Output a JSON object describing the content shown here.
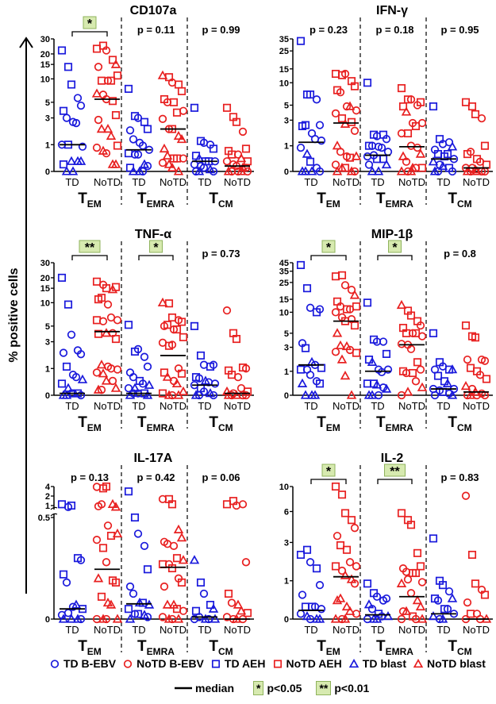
{
  "ylabel": "% positive cells",
  "colors": {
    "td": "#1a1adc",
    "notd": "#e82020",
    "sig_fill": "#d7eab0",
    "sig_border": "#8fb35c"
  },
  "legend": {
    "items": [
      {
        "label": "TD B-EBV",
        "shape": "o",
        "group": "td"
      },
      {
        "label": "NoTD B-EBV",
        "shape": "o",
        "group": "notd"
      },
      {
        "label": "TD AEH",
        "shape": "s",
        "group": "td"
      },
      {
        "label": "NoTD AEH",
        "shape": "s",
        "group": "notd"
      },
      {
        "label": "TD blast",
        "shape": "t",
        "group": "td"
      },
      {
        "label": "NoTD blast",
        "shape": "t",
        "group": "notd"
      }
    ],
    "median": "median",
    "sig1_mark": "*",
    "sig1_label": "p<0.05",
    "sig2_mark": "**",
    "sig2_label": "p<0.01"
  },
  "chart_data": [
    {
      "type": "scatter",
      "title": "CD107a",
      "scale": "log1p",
      "yticks": [
        0,
        1,
        3,
        5,
        10,
        15,
        20,
        30
      ],
      "ymax": 30,
      "categories": [
        "TD",
        "NoTD"
      ],
      "subsets": [
        [
          "T",
          "EM"
        ],
        [
          "T",
          "EMRA"
        ],
        [
          "T",
          "CM"
        ]
      ],
      "stats": [
        "*",
        "p = 0.11",
        "p = 0.99"
      ],
      "medians": [
        1,
        5.5,
        0.75,
        2,
        0.3,
        0.15
      ],
      "groups": [
        "s22 s14 s8.5 o5.7 o4.5 s3.8 o3 o2.6 o2.5 o0.9 o1 s1 t0.3 t0.3 t0.3 s0.2 t0 t0",
        "s23 s25 o22 s17 t15 o14 s9.5 o9.5 s9.5 s11 t6.5 o6.3 o5.5 s5.2 s3.3 o2.8 t2 t2 t1.5 s0.95 o0.85 t0.7 o0.6 t0.2 t0.2",
        "s7.5 s3.2 o3 s2.6 s2 o1.9 o1.3 o1.1 o0.95 o0.75 s0.6 o0.55 o0.55 t0.2 o0.15 s0.1 t0 t0 o0",
        "t11 s10.5 o9 s8.5 s7 s5.5 o5 s5 s3.6 o3.8 o2.9 o2 s2 t1.5 t1.3 t0.8 t0.5 s0.4 s0.4 o0.4 o0.25 t0.2 t0.1 t0",
        "s4.2 s1.2 o1.1 o1 s0.8 s0.5 t0.4 s0.3 s0.3 o0.3 o0.2 o0.15 o0.1 t0.05 o0 o0 t0",
        "s4.2 s3.1 s2.6 o1.8 s0.8 s0.7 s0.55 o0.55 t0.4 s0.3 o0.3 o0.2 o0.15 t0.1 o0.1 t0 o0 o0 t0 o0"
      ]
    },
    {
      "type": "scatter",
      "title": "IFN-γ",
      "scale": "log1p",
      "yticks": [
        0,
        1,
        3,
        5,
        10,
        15,
        25,
        35
      ],
      "ymax": 35,
      "categories": [
        "TD",
        "NoTD"
      ],
      "subsets": [
        [
          "T",
          "EM"
        ],
        [
          "T",
          "EMRA"
        ],
        [
          "T",
          "CM"
        ]
      ],
      "stats": [
        "p = 0.23",
        "p = 0.18",
        "p = 0.95"
      ],
      "medians": [
        1.2,
        2.7,
        0.55,
        0.95,
        0.4,
        0.1
      ],
      "groups": [
        "s33 s7 s7 o6 o2.5 s2.4 s2.5 o1.8 o1.4 o1.3 o0.9 t0.6 s0.3 o0.1 o0 t0 t0 t0",
        "s13 s12.5 o13 s10.5 s9 s8 o7.5 o4.8 t4.8 o4.2 o3.8 s3.2 t2.6 s2.8 o2 t1 o0.7 o0.5 s0.45 t0.5 o0.2 t0.1 s0.1 t0 o0 t0",
        "s10 s1.7 o1.6 s1.7 o1.4 s1 o1 o0.95 o0.9 o0.7 o0.5 o0.55 s0.4 s0.4 t0.2 o0.2 t0 t0",
        "s8.5 s6 o6 o5 s5.5 s4.8 t4 o2.7 s2.4 o2.7 o1.8 s1.8 o1 o0.9 t0.6 t0.5 o0.3 t0.1 o0.1 s0.1 t0 o0 t0",
        "s4.8 s1.4 o1.1 o1.2 t0.95 o0.8 s0.6 s0.5 s0.6 o0.4 t0.3 o0.2 t0.15 s0.1 o0 t0 o0",
        "s5.5 s4.8 s3.7 o3.2 s1 s0.6 o0.7 s0.4 o0.3 s0.2 o0.1 o0.1 t0.05 o0 o0 t0 o0 t0"
      ]
    },
    {
      "type": "scatter",
      "title": "TNF-α",
      "scale": "log1p",
      "yticks": [
        0,
        1,
        3,
        5,
        10,
        15,
        20,
        30
      ],
      "ymax": 30,
      "categories": [
        "TD",
        "NoTD"
      ],
      "subsets": [
        [
          "T",
          "EM"
        ],
        [
          "T",
          "EMRA"
        ],
        [
          "T",
          "CM"
        ]
      ],
      "stats": [
        "**",
        "*",
        "p = 0.73"
      ],
      "medians": [
        0.05,
        4.2,
        0.05,
        1.8,
        0.3,
        0.05
      ],
      "groups": [
        "s20 s9.5 o3.8 o2.2 o1.9 o2 s1.1 o0.7 o0.6 t0.5 s0.35 t0.2 o0.05 s0.05 o0 t0 t0 o0.05",
        "s18 o16.5 s15 t14.5 s15.5 s11 s11.5 o9.5 o6.5 o6 s6 o5.8 t4 o4 s3.3 s3.9 t1.2 o1.1 o1 o0.95 o0.8 t0.75 t0.45 o0.45 t0.2 t0.15 o0.15",
        "s5.2 s2.1 o2.3 o1.7 o1.1 o0.8 o0.6 s0.45 o0.35 t0.3 o0.2 t0.2 o0.05 s0.05 t0 t0 o0.05",
        "t10 s9.8 s6.5 o6 s5.7 o5 s5.2 o4.5 s4.5 s3.5 o2.9 s2.6 o2.7 o1 s0.75 s0.8 t0.6 o0.45 t0.35 t0.1 s0.05 t0 o0 t0",
        "s5 s1.8 o1.2 s1.1 o1.2 s0.6 o0.55 t0.45 o0.4 o0.35 o0.3 s0.2 o0.1 t0.05 o0 t0 o0",
        "o8 s4 s3.3 s1.05 o1 s0.9 s0.7 o0.6 o0.2 s0.1 t0.1 o0.05 t0 o0 o0 t0 o0"
      ]
    },
    {
      "type": "scatter",
      "title": "MIP-1β",
      "scale": "log1p",
      "yticks": [
        0,
        1,
        3,
        5,
        10,
        15,
        25,
        35,
        45
      ],
      "ymax": 45,
      "categories": [
        "TD",
        "NoTD"
      ],
      "subsets": [
        [
          "T",
          "EM"
        ],
        [
          "T",
          "EMRA"
        ],
        [
          "T",
          "CM"
        ]
      ],
      "stats": [
        "*",
        "*",
        "p = 0.8"
      ],
      "medians": [
        1.4,
        7.5,
        1,
        3.3,
        0.2,
        0.1
      ],
      "groups": [
        "s42 s21 o11.5 s10 o11 o3.5 s2.9 t1.6 o1.4 s1.2 s1.1 o1.1 o0.8 o0.5 s0.4 t0.4 t0 t0 t0",
        "s30 s31 o23 o20 t17 s14 o12 s11 o11 s12 o10 o8.5 s7.5 o8 s6.5 t5 t3.2 t3.1 o2.7 s2.4 o2.5 t1.8 t0.75 t0",
        "s13.5 s4 o3.7 o3.7 s2.3 s1.8 t1.6 o1.1 o0.95 o1.1 s0.4 s0.4 t0.35 o0.25 t0.2 t0 t0 o0",
        "t12.5 s10.5 s9 s7.5 o6.5 s6 s5 o5 s5 o4.5 o3.4 o3.3 o2.8 s1.6 o1.1 s1 o0.9 s0.9 o0.5 t0.25 o0 t0.1",
        "s5 s1.6 o1.3 s1.1 t1.1 o1.1 s0.75 s0.5 t0.4 o0.2 o0.2 o0.15 s0.1 o0.05 t0 o0",
        "s6.5 s4.5 s4.3 o1.8 o1.7 o1.8 s1.2 s1 o0.8 s0.6 t0.3 o0.2 t0.1 o0.05 o0 o0 t0 o0"
      ]
    },
    {
      "type": "scatter",
      "title": "IL-17A",
      "scale": "broken",
      "yticks": [
        0,
        0.5,
        1,
        2,
        4
      ],
      "ymax": 4,
      "categories": [
        "TD",
        "NoTD"
      ],
      "subsets": [
        [
          "T",
          "EM"
        ],
        [
          "T",
          "EMRA"
        ],
        [
          "T",
          "CM"
        ]
      ],
      "stats": [
        "p = 0.13",
        "p = 0.42",
        "p = 0.06"
      ],
      "medians": [
        0.05,
        0.245,
        0.075,
        0.255,
        0.01,
        0
      ],
      "groups": [
        "s1.1 o0.9 s1 s0.3 o0.29 s0.22 o0.18 o0.06 t0.07 s0.05 o0.02 o0.03 t0 t0 o0 t0",
        "o3.9 s3.5 s4 t1.1 t0.9 o0.95 o1.1 o0.46 s0.41 t0.42 o0.39 s0.35 o0.28 s0.19 s0.18 t0.2 s0.11 t0.08 t0.07 t0 o0 t0 o0",
        "s2.8 s0.5 o0.42 o0.36 s0.245 o0.16 o0.125 t0.08 s0.08 t0.07 s0.05 o0.025 s0.025 t0.02 o0.01 t0",
        "o1.6 s1.6 s1.1 t0.44 t0.4 o0.38 o0.37 o0.36 s0.3 t0.29 s0.27 o0.27 s0.25 o0.2 s0.18 o0.16 t0.07 t0.07 s0.05 o0.04 o0.01 t0 o0 t0",
        "t0.29 s0.18 o0.125 s0.07 t0.05 s0.04 o0.01 t0 o0 t0 o0",
        "s1.1 s1.4 o1 o1.1 o0.28 s0.125 o0.08 t0.07 t0.04 s0.03 o0.01 o0 t0 o0"
      ]
    },
    {
      "type": "scatter",
      "title": "IL-2",
      "scale": "log1p",
      "yticks": [
        0,
        1,
        3,
        6,
        10
      ],
      "ymax": 10,
      "categories": [
        "TD",
        "NoTD"
      ],
      "subsets": [
        [
          "T",
          "EM"
        ],
        [
          "T",
          "EMRA"
        ],
        [
          "T",
          "CM"
        ]
      ],
      "stats": [
        "*",
        "**",
        "p = 0.83"
      ],
      "medians": [
        0.17,
        1.15,
        0.08,
        0.5,
        0.1,
        0
      ],
      "groups": [
        "s2.2 s2.5 o1.8 s1.5 o0.85 o0.55 s0.25 s0.25 o0.25 o0.2 o0.1 t0.05 o0 t0 t0",
        "s10 s8.5 s5.8 s5 o4.2 o3.5 s2.8 s2.5 o1.8 o1.6 s1.6 o1.4 t1.2 t1.05 o0.9 t0.4 t0.45 t0.25 t0.15 o0.1 t0 o0 t0",
        "s0.9 s0.6 o0.5 o0.4 o0.45 t0.3 o0.2 s0.1 o0.05 t0.05 o0 t0 t0",
        "s5.8 s5 s4.5 s2.3 s1.6 o1.5 o1.35 s1.3 s1.3 o0.95 t0.9 o1.05 o0.6 t0.4 t0.25 o0.15 t0.15 s0.05 o0 t0 o0",
        "s3.3 s1 s0.85 o0.65 t0.45 s0.45 o0.4 s0.2 o0.2 o0.1 t0.05 o0 t0",
        "o8.3 s2.2 s0.9 o0.7 s0.55 o0.35 s0.1 o0.1 o0 t0 o0"
      ]
    }
  ]
}
